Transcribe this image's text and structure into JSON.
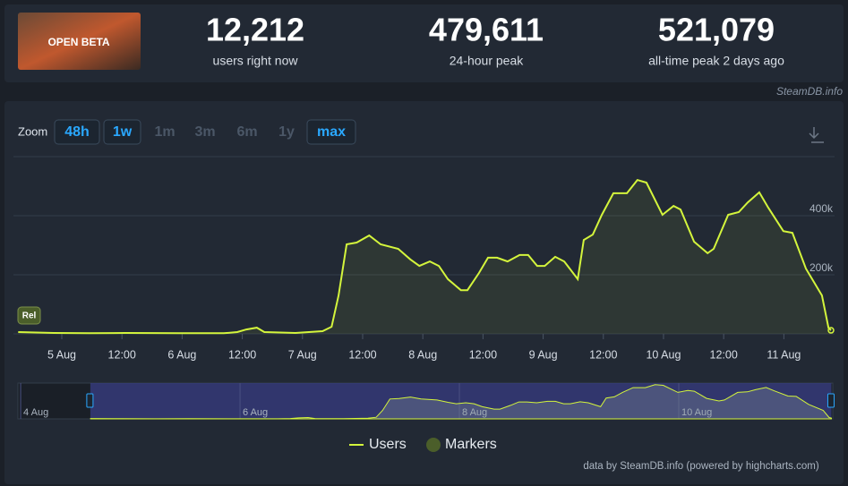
{
  "header": {
    "thumbnail_text": "OPEN BETA",
    "stats": [
      {
        "value": "12,212",
        "label": "users right now"
      },
      {
        "value": "479,611",
        "label": "24-hour peak"
      },
      {
        "value": "521,079",
        "label": "all-time peak 2 days ago"
      }
    ],
    "source": "SteamDB.info"
  },
  "zoom": {
    "label": "Zoom",
    "buttons": [
      {
        "label": "48h",
        "active": true
      },
      {
        "label": "1w",
        "active": true
      },
      {
        "label": "1m",
        "active": false
      },
      {
        "label": "3m",
        "active": false
      },
      {
        "label": "6m",
        "active": false
      },
      {
        "label": "1y",
        "active": false
      },
      {
        "label": "max",
        "active": true
      }
    ]
  },
  "chart_data": {
    "type": "line",
    "x": [
      15.3,
      22.4,
      29.5,
      36.7,
      47.4,
      56.3,
      59.0,
      60.8,
      62.9,
      64.4,
      70.6,
      76.0,
      77.8,
      79.2,
      80.8,
      82.8,
      85.3,
      87.6,
      91.1,
      93.5,
      95.3,
      97.4,
      99.2,
      101.0,
      103.6,
      104.9,
      107.2,
      109.0,
      110.8,
      112.9,
      115.3,
      117.0,
      118.8,
      120.3,
      122.4,
      124.2,
      126.9,
      128.1,
      129.9,
      131.7,
      134.0,
      136.7,
      138.8,
      140.6,
      143.8,
      146.0,
      147.4,
      150.1,
      152.8,
      154.0,
      156.9,
      159.0,
      160.8,
      163.1,
      164.9,
      167.9,
      169.7,
      172.4,
      175.6,
      176.9,
      177.4
    ],
    "series": [
      {
        "name": "Users",
        "color": "#d4f53c",
        "values": [
          6000,
          3000,
          2000,
          3000,
          2000,
          2000,
          6000,
          15000,
          21000,
          6000,
          3000,
          9000,
          24000,
          130000,
          303000,
          309000,
          333000,
          303000,
          288000,
          252000,
          230000,
          245000,
          230000,
          185000,
          148000,
          148000,
          206000,
          258000,
          258000,
          245000,
          267000,
          267000,
          230000,
          230000,
          261000,
          245000,
          185000,
          318000,
          336000,
          403000,
          476000,
          476000,
          521000,
          512000,
          403000,
          433000,
          421000,
          312000,
          273000,
          288000,
          403000,
          412000,
          445000,
          479000,
          427000,
          348000,
          342000,
          221000,
          130000,
          21000,
          12000
        ]
      }
    ],
    "markers": {
      "name": "Markers",
      "color": "#4b5e2a",
      "label": "Rel"
    },
    "xlim": [
      15.25,
      177.4
    ],
    "xticks": [
      {
        "value": 24,
        "label": "5 Aug"
      },
      {
        "value": 36,
        "label": "12:00"
      },
      {
        "value": 48,
        "label": "6 Aug"
      },
      {
        "value": 60,
        "label": "12:00"
      },
      {
        "value": 72,
        "label": "7 Aug"
      },
      {
        "value": 84,
        "label": "12:00"
      },
      {
        "value": 96,
        "label": "8 Aug"
      },
      {
        "value": 108,
        "label": "12:00"
      },
      {
        "value": 120,
        "label": "9 Aug"
      },
      {
        "value": 132,
        "label": "12:00"
      },
      {
        "value": 144,
        "label": "10 Aug"
      },
      {
        "value": 156,
        "label": "12:00"
      },
      {
        "value": 168,
        "label": "11 Aug"
      }
    ],
    "ylim": [
      0,
      600000
    ],
    "yticks": [
      {
        "value": 200000,
        "label": "200k"
      },
      {
        "value": 400000,
        "label": "400k"
      }
    ],
    "grid": true,
    "navigator": {
      "xlim": [
        -0.6,
        177.7
      ],
      "xticks": [
        {
          "value": 0,
          "label": "4 Aug"
        },
        {
          "value": 48,
          "label": "6 Aug"
        },
        {
          "value": 96,
          "label": "8 Aug"
        },
        {
          "value": 144,
          "label": "10 Aug"
        }
      ]
    }
  },
  "credits": "data by SteamDB.info (powered by highcharts.com)"
}
